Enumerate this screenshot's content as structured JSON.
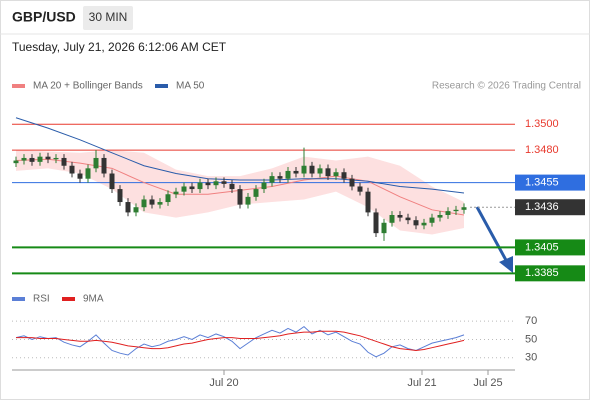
{
  "chart_data": [
    {
      "type": "candlestick",
      "title": "GBP/USD",
      "timeframe": "30 MIN",
      "subtitle": "Tuesday, July 21, 2026 6:12:06 AM CET",
      "note": "Research © 2026 Trading Central",
      "xlim": [
        -0.5,
        62.375
      ],
      "ylim": [
        1.3376,
        1.3511
      ],
      "up_color": "#2e7d32",
      "down_color": "#333333",
      "open": [
        1.347,
        1.3472,
        1.3474,
        1.3471,
        1.3475,
        1.3473,
        1.3474,
        1.3468,
        1.3462,
        1.3458,
        1.3466,
        1.3474,
        1.3462,
        1.345,
        1.344,
        1.3432,
        1.3436,
        1.3442,
        1.3438,
        1.344,
        1.3446,
        1.3448,
        1.3452,
        1.345,
        1.3455,
        1.3453,
        1.3456,
        1.3454,
        1.345,
        1.3438,
        1.3444,
        1.345,
        1.3455,
        1.346,
        1.3458,
        1.3464,
        1.3462,
        1.3468,
        1.3462,
        1.3466,
        1.346,
        1.3463,
        1.3458,
        1.3452,
        1.3448,
        1.3432,
        1.3416,
        1.3424,
        1.343,
        1.3428,
        1.3426,
        1.3422,
        1.3424,
        1.3428,
        1.343,
        1.3433,
        1.3434
      ],
      "high": [
        1.3475,
        1.3477,
        1.3477,
        1.3478,
        1.3478,
        1.3477,
        1.3477,
        1.3471,
        1.3465,
        1.3469,
        1.348,
        1.3477,
        1.3465,
        1.3453,
        1.3443,
        1.3439,
        1.3445,
        1.3445,
        1.3443,
        1.3449,
        1.3451,
        1.3455,
        1.3455,
        1.3458,
        1.3458,
        1.3459,
        1.3459,
        1.3457,
        1.3453,
        1.3447,
        1.3453,
        1.3458,
        1.3463,
        1.3463,
        1.3467,
        1.3467,
        1.3482,
        1.3471,
        1.3469,
        1.3469,
        1.3466,
        1.3466,
        1.3461,
        1.3455,
        1.3451,
        1.3435,
        1.3427,
        1.3433,
        1.3433,
        1.3431,
        1.3429,
        1.3427,
        1.3431,
        1.3433,
        1.3436,
        1.3437,
        1.3439
      ],
      "low": [
        1.3467,
        1.3469,
        1.3468,
        1.3468,
        1.347,
        1.347,
        1.3465,
        1.3459,
        1.3455,
        1.3455,
        1.3463,
        1.3459,
        1.3447,
        1.3437,
        1.3429,
        1.3429,
        1.3433,
        1.3435,
        1.3435,
        1.3437,
        1.3443,
        1.3445,
        1.3447,
        1.3447,
        1.345,
        1.345,
        1.3451,
        1.3447,
        1.3435,
        1.3435,
        1.3441,
        1.3447,
        1.3452,
        1.3455,
        1.3455,
        1.3459,
        1.3459,
        1.3459,
        1.3459,
        1.3457,
        1.3457,
        1.3455,
        1.3449,
        1.3445,
        1.3429,
        1.3413,
        1.341,
        1.3421,
        1.3425,
        1.3423,
        1.3419,
        1.3419,
        1.3421,
        1.3425,
        1.3427,
        1.343,
        1.3431
      ],
      "close": [
        1.3472,
        1.3474,
        1.3471,
        1.3475,
        1.3473,
        1.3474,
        1.3468,
        1.3462,
        1.3458,
        1.3466,
        1.3474,
        1.3462,
        1.345,
        1.344,
        1.3432,
        1.3436,
        1.3442,
        1.3438,
        1.344,
        1.3446,
        1.3448,
        1.3452,
        1.345,
        1.3455,
        1.3453,
        1.3456,
        1.3454,
        1.345,
        1.3438,
        1.3444,
        1.345,
        1.3455,
        1.346,
        1.3458,
        1.3464,
        1.3462,
        1.3468,
        1.3462,
        1.3466,
        1.346,
        1.3463,
        1.3458,
        1.3452,
        1.3448,
        1.3432,
        1.3416,
        1.3424,
        1.343,
        1.3428,
        1.3426,
        1.3422,
        1.3424,
        1.3428,
        1.343,
        1.3433,
        1.3434,
        1.3436
      ],
      "ma_x": [
        0,
        4,
        8,
        12,
        16,
        20,
        24,
        28,
        32,
        36,
        40,
        44,
        48,
        52,
        56
      ],
      "series": [
        {
          "name": "MA 20 + Bollinger Bands",
          "color": "#f08080",
          "band_color": "#fde0e0",
          "values": [
            1.3472,
            1.3473,
            1.347,
            1.3466,
            1.3455,
            1.3446,
            1.3446,
            1.3449,
            1.3452,
            1.3457,
            1.346,
            1.3456,
            1.3444,
            1.3434,
            1.343
          ],
          "upper": [
            1.348,
            1.3479,
            1.3478,
            1.348,
            1.3478,
            1.3465,
            1.346,
            1.346,
            1.3466,
            1.3475,
            1.3472,
            1.3475,
            1.3468,
            1.3452,
            1.344
          ],
          "lower": [
            1.3464,
            1.3466,
            1.3462,
            1.345,
            1.3432,
            1.3428,
            1.3432,
            1.3438,
            1.344,
            1.3442,
            1.3448,
            1.3436,
            1.3418,
            1.3415,
            1.342
          ]
        },
        {
          "name": "MA 50",
          "color": "#2a5caa",
          "values": [
            1.3505,
            1.3497,
            1.3488,
            1.3478,
            1.3468,
            1.3462,
            1.3458,
            1.3457,
            1.3457,
            1.3458,
            1.3458,
            1.3456,
            1.3452,
            1.345,
            1.3447
          ]
        }
      ],
      "levels": [
        {
          "value": 1.35,
          "label": "1.3500",
          "color": "#e8392d",
          "style": "solid",
          "box": false
        },
        {
          "value": 1.348,
          "label": "1.3480",
          "color": "#e8392d",
          "style": "solid",
          "box": false
        },
        {
          "value": 1.3455,
          "label": "1.3455",
          "color": "#2f6ee0",
          "style": "solid",
          "box": true
        },
        {
          "value": 1.3436,
          "label": "1.3436",
          "color": "#333333",
          "style": "dotted",
          "box": true
        },
        {
          "value": 1.3405,
          "label": "1.3405",
          "color": "#168a16",
          "style": "thick",
          "box": true
        },
        {
          "value": 1.3385,
          "label": "1.3385",
          "color": "#168a16",
          "style": "thick",
          "box": true
        }
      ]
    },
    {
      "type": "line",
      "xlim": [
        -0.5,
        62.375
      ],
      "ylim": [
        21,
        80
      ],
      "yticks": [
        30,
        50,
        70
      ],
      "grid": true,
      "xticks": [
        {
          "value": 26,
          "label": "Jul 20"
        },
        {
          "value": 50.75,
          "label": "Jul 21"
        },
        {
          "value": 59,
          "label": "Jul 25"
        }
      ],
      "series": [
        {
          "name": "RSI",
          "color": "#5b7fd6",
          "values": [
            52,
            54,
            50,
            53,
            51,
            52,
            47,
            44,
            42,
            48,
            55,
            46,
            38,
            35,
            33,
            40,
            45,
            42,
            44,
            48,
            50,
            53,
            50,
            55,
            52,
            56,
            53,
            48,
            40,
            46,
            52,
            56,
            60,
            57,
            62,
            58,
            64,
            56,
            60,
            55,
            58,
            53,
            48,
            45,
            36,
            31,
            35,
            42,
            44,
            40,
            38,
            42,
            46,
            48,
            50,
            52,
            55
          ]
        },
        {
          "name": "9MA",
          "color": "#e02020",
          "values": [
            52,
            52,
            52,
            51,
            51,
            51,
            50,
            49,
            48,
            48,
            49,
            48,
            47,
            45,
            43,
            42,
            41,
            40,
            40,
            41,
            43,
            45,
            46,
            48,
            50,
            51,
            52,
            52,
            51,
            51,
            51,
            52,
            53,
            54,
            56,
            57,
            58,
            58,
            59,
            59,
            59,
            58,
            56,
            54,
            51,
            48,
            45,
            42,
            40,
            39,
            38,
            39,
            41,
            43,
            45,
            47,
            49
          ]
        }
      ]
    }
  ]
}
